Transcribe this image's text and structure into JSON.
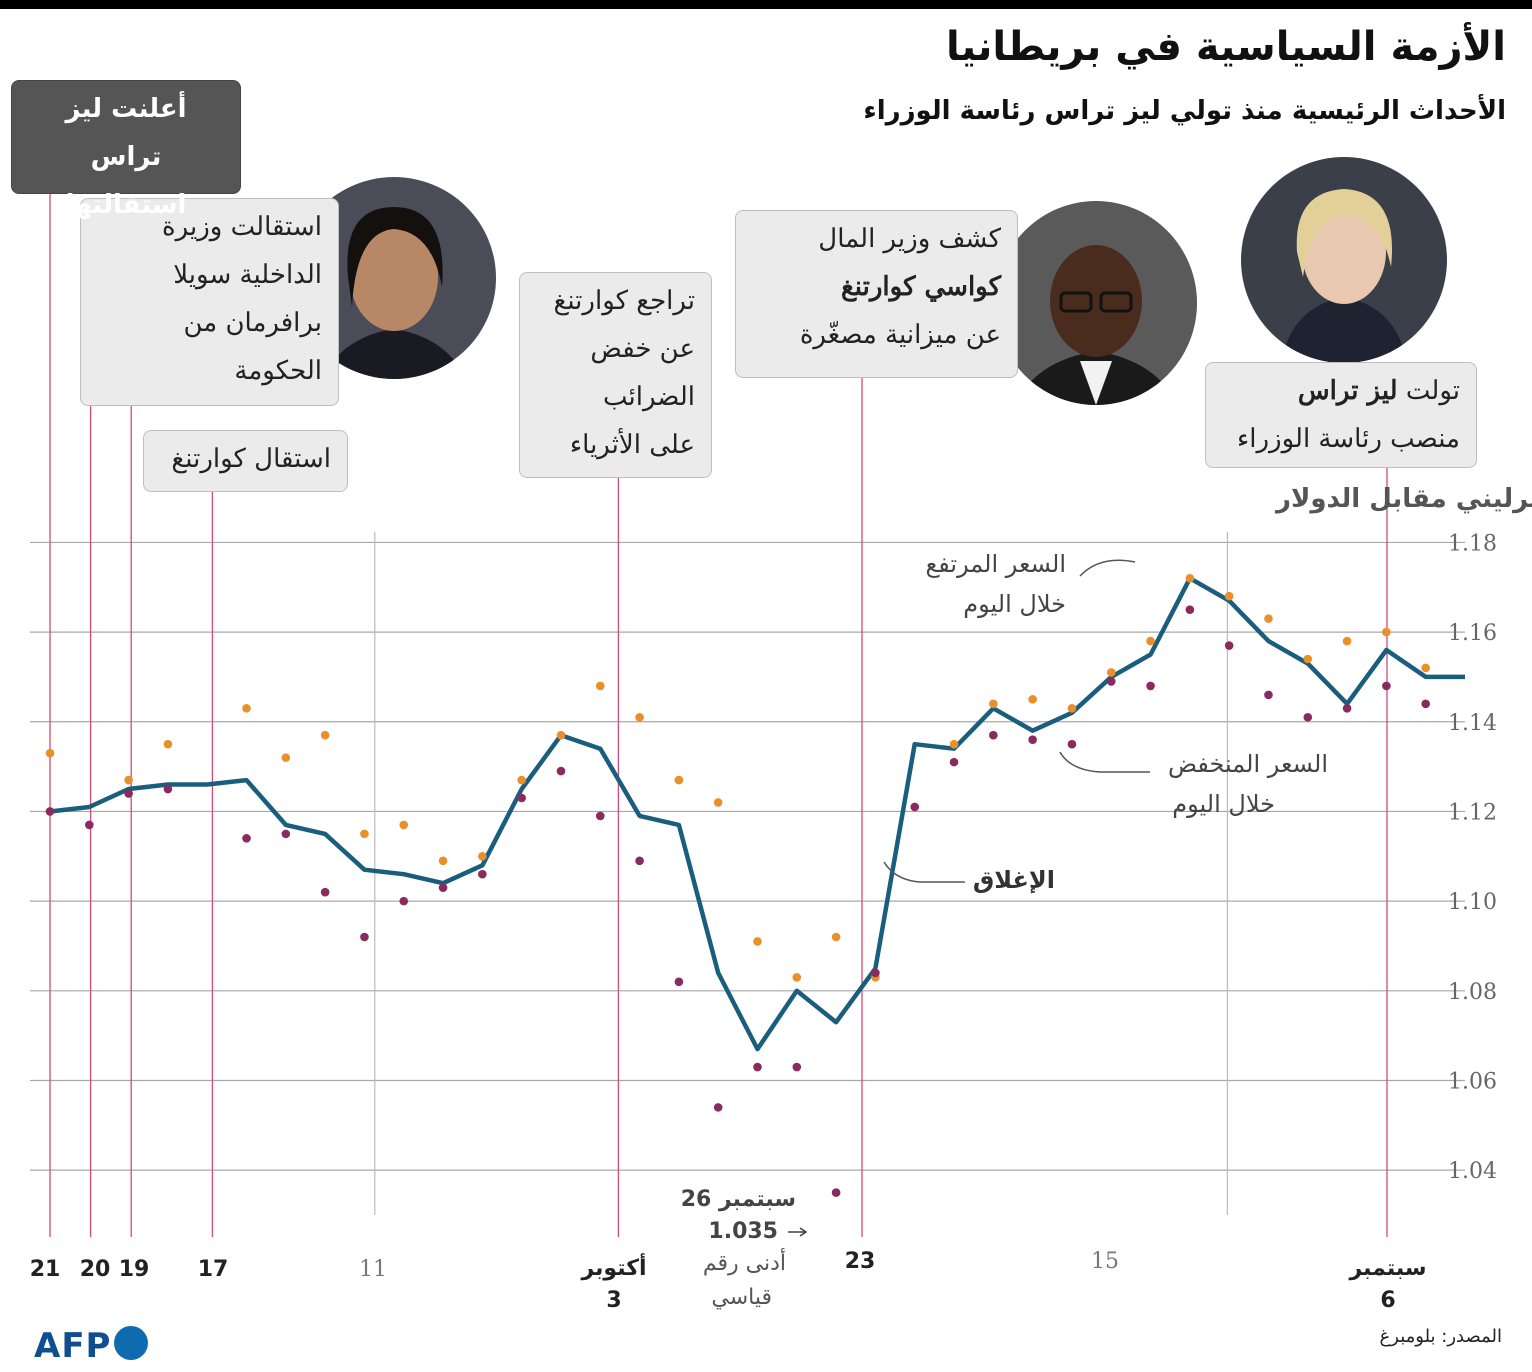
{
  "header": {
    "title": "الأزمة السياسية في بريطانيا",
    "subtitle": "الأحداث الرئيسية منذ تولي ليز تراس رئاسة الوزراء"
  },
  "events": {
    "truss_takes_office": {
      "pre": "تولت ",
      "bold": "ليز تراس",
      "line2": "منصب رئاسة الوزراء"
    },
    "kwarteng_budget": {
      "line1": "كشف وزير المال",
      "bold": "كواسي كوارتنغ",
      "line3": "عن ميزانية مصغّرة"
    },
    "tax_uturn": {
      "lines": [
        "تراجع كوارتنغ",
        "عن خفض",
        "الضرائب",
        "على الأثرياء"
      ]
    },
    "kwarteng_resigns": {
      "text": "استقال كوارتنغ"
    },
    "braverman_resigns": {
      "lines": [
        "استقالت وزيرة",
        "الداخلية سويلا",
        "برافرمان من",
        "الحكومة"
      ]
    },
    "truss_resigns": {
      "lines": [
        "أعلنت ليز تراس",
        "استقالتها"
      ]
    }
  },
  "chart_data": {
    "type": "line",
    "title": "الجنيه الاسترليني مقابل الدولار",
    "ylim": [
      1.03,
      1.185
    ],
    "yticks": [
      "1.18",
      "1.16",
      "1.14",
      "1.12",
      "1.10",
      "1.08",
      "1.06",
      "1.04"
    ],
    "x_labels": [
      {
        "label": "21",
        "emphasis": true
      },
      {
        "label": "20",
        "emphasis": true
      },
      {
        "label": "19",
        "emphasis": true
      },
      {
        "label": "17",
        "emphasis": true
      },
      {
        "label": "11",
        "emphasis": false
      },
      {
        "label": "أكتوبر",
        "sub": "3",
        "emphasis": true
      },
      {
        "label": "23",
        "emphasis": true
      },
      {
        "label": "15",
        "emphasis": false
      },
      {
        "label": "سبتمبر",
        "sub": "6",
        "emphasis": true
      }
    ],
    "series": [
      {
        "name": "الإغلاق",
        "color": "#1a5e7e",
        "values": [
          1.15,
          1.15,
          1.156,
          1.144,
          1.153,
          1.158,
          1.167,
          1.172,
          1.155,
          1.15,
          1.142,
          1.138,
          1.143,
          1.134,
          1.135,
          1.085,
          1.073,
          1.08,
          1.067,
          1.084,
          1.117,
          1.119,
          1.134,
          1.137,
          1.125,
          1.108,
          1.104,
          1.106,
          1.107,
          1.115,
          1.117,
          1.127,
          1.126,
          1.126,
          1.125,
          1.121,
          1.12
        ]
      },
      {
        "name": "السعر المرتفع خلال اليوم",
        "color": "#e8902a",
        "values": [
          null,
          1.152,
          1.16,
          1.158,
          1.154,
          1.163,
          1.168,
          1.172,
          1.158,
          1.151,
          1.143,
          1.145,
          1.144,
          1.135,
          null,
          1.083,
          1.092,
          1.083,
          1.091,
          1.122,
          1.127,
          1.141,
          1.148,
          1.137,
          1.127,
          1.11,
          1.109,
          1.117,
          1.115,
          1.137,
          1.132,
          1.143,
          null,
          1.135,
          1.127,
          null,
          1.133
        ]
      },
      {
        "name": "السعر المنخفض خلال اليوم",
        "color": "#8a2a5e",
        "values": [
          null,
          1.144,
          1.148,
          1.143,
          1.141,
          1.146,
          1.157,
          1.165,
          1.148,
          1.149,
          1.135,
          1.136,
          1.137,
          1.131,
          1.121,
          1.084,
          1.035,
          1.063,
          1.063,
          1.054,
          1.082,
          1.109,
          1.119,
          1.129,
          1.123,
          1.106,
          1.103,
          1.1,
          1.092,
          1.102,
          1.115,
          1.114,
          null,
          1.125,
          1.124,
          1.117,
          1.12
        ]
      }
    ],
    "annotations": {
      "high_label": [
        "السعر المرتفع",
        "خلال اليوم"
      ],
      "low_label": [
        "السعر المنخفض",
        "خلال اليوم"
      ],
      "close_label": "الإغلاق",
      "record_low": [
        "26 سبتمبر",
        "1.035",
        "أدنى رقم",
        "قياسي"
      ]
    }
  },
  "footer": {
    "source": "المصدر: بلومبرغ",
    "logo": "AFP"
  },
  "colors": {
    "close": "#1a5e7e",
    "high": "#e8902a",
    "low": "#8a2a5e",
    "event_line": "#d44a7a",
    "grid": "#999999"
  }
}
